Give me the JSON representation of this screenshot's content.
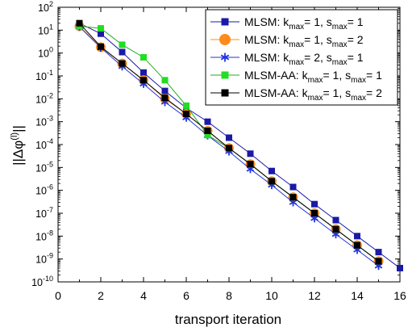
{
  "chart_data": {
    "type": "line",
    "title": "",
    "xlabel": "transport iteration",
    "ylabel": {
      "base": "||Δφ",
      "sup": "(l)",
      "end": "||"
    },
    "xlim": [
      0,
      16
    ],
    "ylim_log10": [
      -10,
      2
    ],
    "y_scale": "log",
    "x_ticks": [
      0,
      2,
      4,
      6,
      8,
      10,
      12,
      14,
      16
    ],
    "y_tick_exponents": [
      2,
      1,
      0,
      -1,
      -2,
      -3,
      -4,
      -5,
      -6,
      -7,
      -8,
      -9,
      -10
    ],
    "y_tick_base": "10",
    "grid": false,
    "legend": {
      "placement": "top-right",
      "entries": [
        {
          "prefix": "MLSM: k",
          "sub1": "max",
          "mid": "= 1, s",
          "sub2": "max",
          "suffix": "= 1"
        },
        {
          "prefix": "MLSM: k",
          "sub1": "max",
          "mid": "= 1, s",
          "sub2": "max",
          "suffix": "= 2"
        },
        {
          "prefix": "MLSM: k",
          "sub1": "max",
          "mid": "= 2, s",
          "sub2": "max",
          "suffix": "= 1"
        },
        {
          "prefix": "MLSM-AA: k",
          "sub1": "max",
          "mid": "= 1, s",
          "sub2": "max",
          "suffix": "= 1"
        },
        {
          "prefix": "MLSM-AA: k",
          "sub1": "max",
          "mid": "= 1, s",
          "sub2": "max",
          "suffix": "= 2"
        }
      ]
    },
    "series": [
      {
        "marker": "square",
        "color": "#1a1aa6",
        "line": "#1a1aa6",
        "x": [
          1,
          2,
          3,
          4,
          5,
          6,
          7,
          8,
          9,
          10,
          11,
          12,
          13,
          14,
          15,
          16
        ],
        "y": [
          20,
          7,
          1.1,
          0.14,
          0.022,
          0.004,
          0.001,
          0.0002,
          4e-05,
          7e-06,
          1.4e-06,
          2.5e-07,
          5e-08,
          1e-08,
          2e-09,
          4e-10
        ]
      },
      {
        "marker": "circle",
        "color": "#ff8c1a",
        "line": "#ff8c1a",
        "x": [
          1,
          2,
          3,
          4,
          5,
          6,
          7,
          8,
          9,
          10,
          11,
          12,
          13,
          14,
          15
        ],
        "y": [
          15,
          1.8,
          0.35,
          0.065,
          0.01,
          0.0022,
          0.0004,
          7e-05,
          1.4e-05,
          2.5e-06,
          5e-07,
          1e-07,
          2e-08,
          4e-09,
          8e-10
        ]
      },
      {
        "marker": "asterisk",
        "color": "#2233dd",
        "line": "#2233dd",
        "x": [
          1,
          2,
          3,
          4,
          5,
          6,
          7,
          8,
          9,
          10,
          11,
          12,
          13,
          14,
          15
        ],
        "y": [
          14,
          1.7,
          0.26,
          0.045,
          0.0072,
          0.0015,
          0.00025,
          5e-05,
          8.5e-06,
          1.7e-06,
          3e-07,
          6e-08,
          1.2e-08,
          2.5e-09,
          5e-10
        ]
      },
      {
        "marker": "square",
        "color": "#22dd22",
        "line": "#22aa22",
        "x": [
          1,
          2,
          3,
          4,
          5,
          6,
          7,
          8,
          9,
          10,
          11,
          12,
          13,
          14,
          15
        ],
        "y": [
          15,
          12,
          2.3,
          0.65,
          0.065,
          0.005,
          0.00026,
          7e-05,
          1.4e-05,
          2.5e-06,
          5e-07,
          1e-07,
          2e-08,
          4e-09,
          8e-10
        ]
      },
      {
        "marker": "square",
        "color": "#000000",
        "line": "#000000",
        "x": [
          1,
          2,
          3,
          4,
          5,
          6,
          7,
          8,
          9,
          10,
          11,
          12,
          13,
          14,
          15
        ],
        "y": [
          20,
          1.9,
          0.35,
          0.065,
          0.011,
          0.0022,
          0.0004,
          7e-05,
          1.4e-05,
          2.5e-06,
          5e-07,
          1e-07,
          2e-08,
          4e-09,
          8e-10
        ]
      }
    ]
  }
}
